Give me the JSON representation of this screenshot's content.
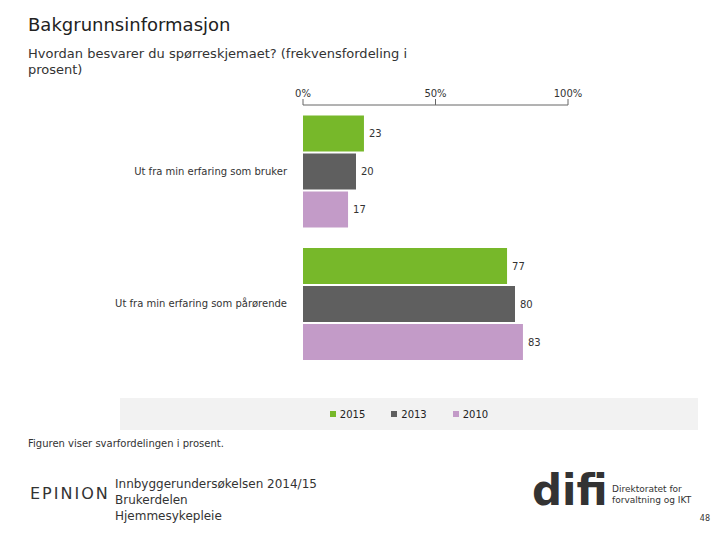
{
  "chart_data": {
    "type": "bar",
    "orientation": "horizontal",
    "title": "Bakgrunnsinformasjon",
    "subtitle": "Hvordan besvarer du spørreskjemaet? (frekvensfordeling i prosent)",
    "categories": [
      "Ut fra min erfaring som bruker",
      "Ut fra min erfaring som pårørende"
    ],
    "series": [
      {
        "name": "2015",
        "color": "#77b82a",
        "values": [
          23,
          77
        ]
      },
      {
        "name": "2013",
        "color": "#5f5f5f",
        "values": [
          20,
          80
        ]
      },
      {
        "name": "2010",
        "color": "#c39bc8",
        "values": [
          17,
          83
        ]
      }
    ],
    "xlim": [
      0,
      100
    ],
    "xticks": [
      {
        "value": 0,
        "label": "0%"
      },
      {
        "value": 50,
        "label": "50%"
      },
      {
        "value": 100,
        "label": "100%"
      }
    ],
    "data_labels": true,
    "grid": false,
    "legend": "bottom"
  },
  "footer": {
    "note": "Figuren viser svarfordelingen i prosent.",
    "source_lines": [
      "Innbyggerundersøkelsen 2014/15",
      "Brukerdelen",
      "Hjemmesykepleie"
    ],
    "logo_left": "EPINION",
    "logo_right": "difi",
    "logo_right_caption": "Direktoratet for forvaltning og IKT",
    "page": 48
  }
}
